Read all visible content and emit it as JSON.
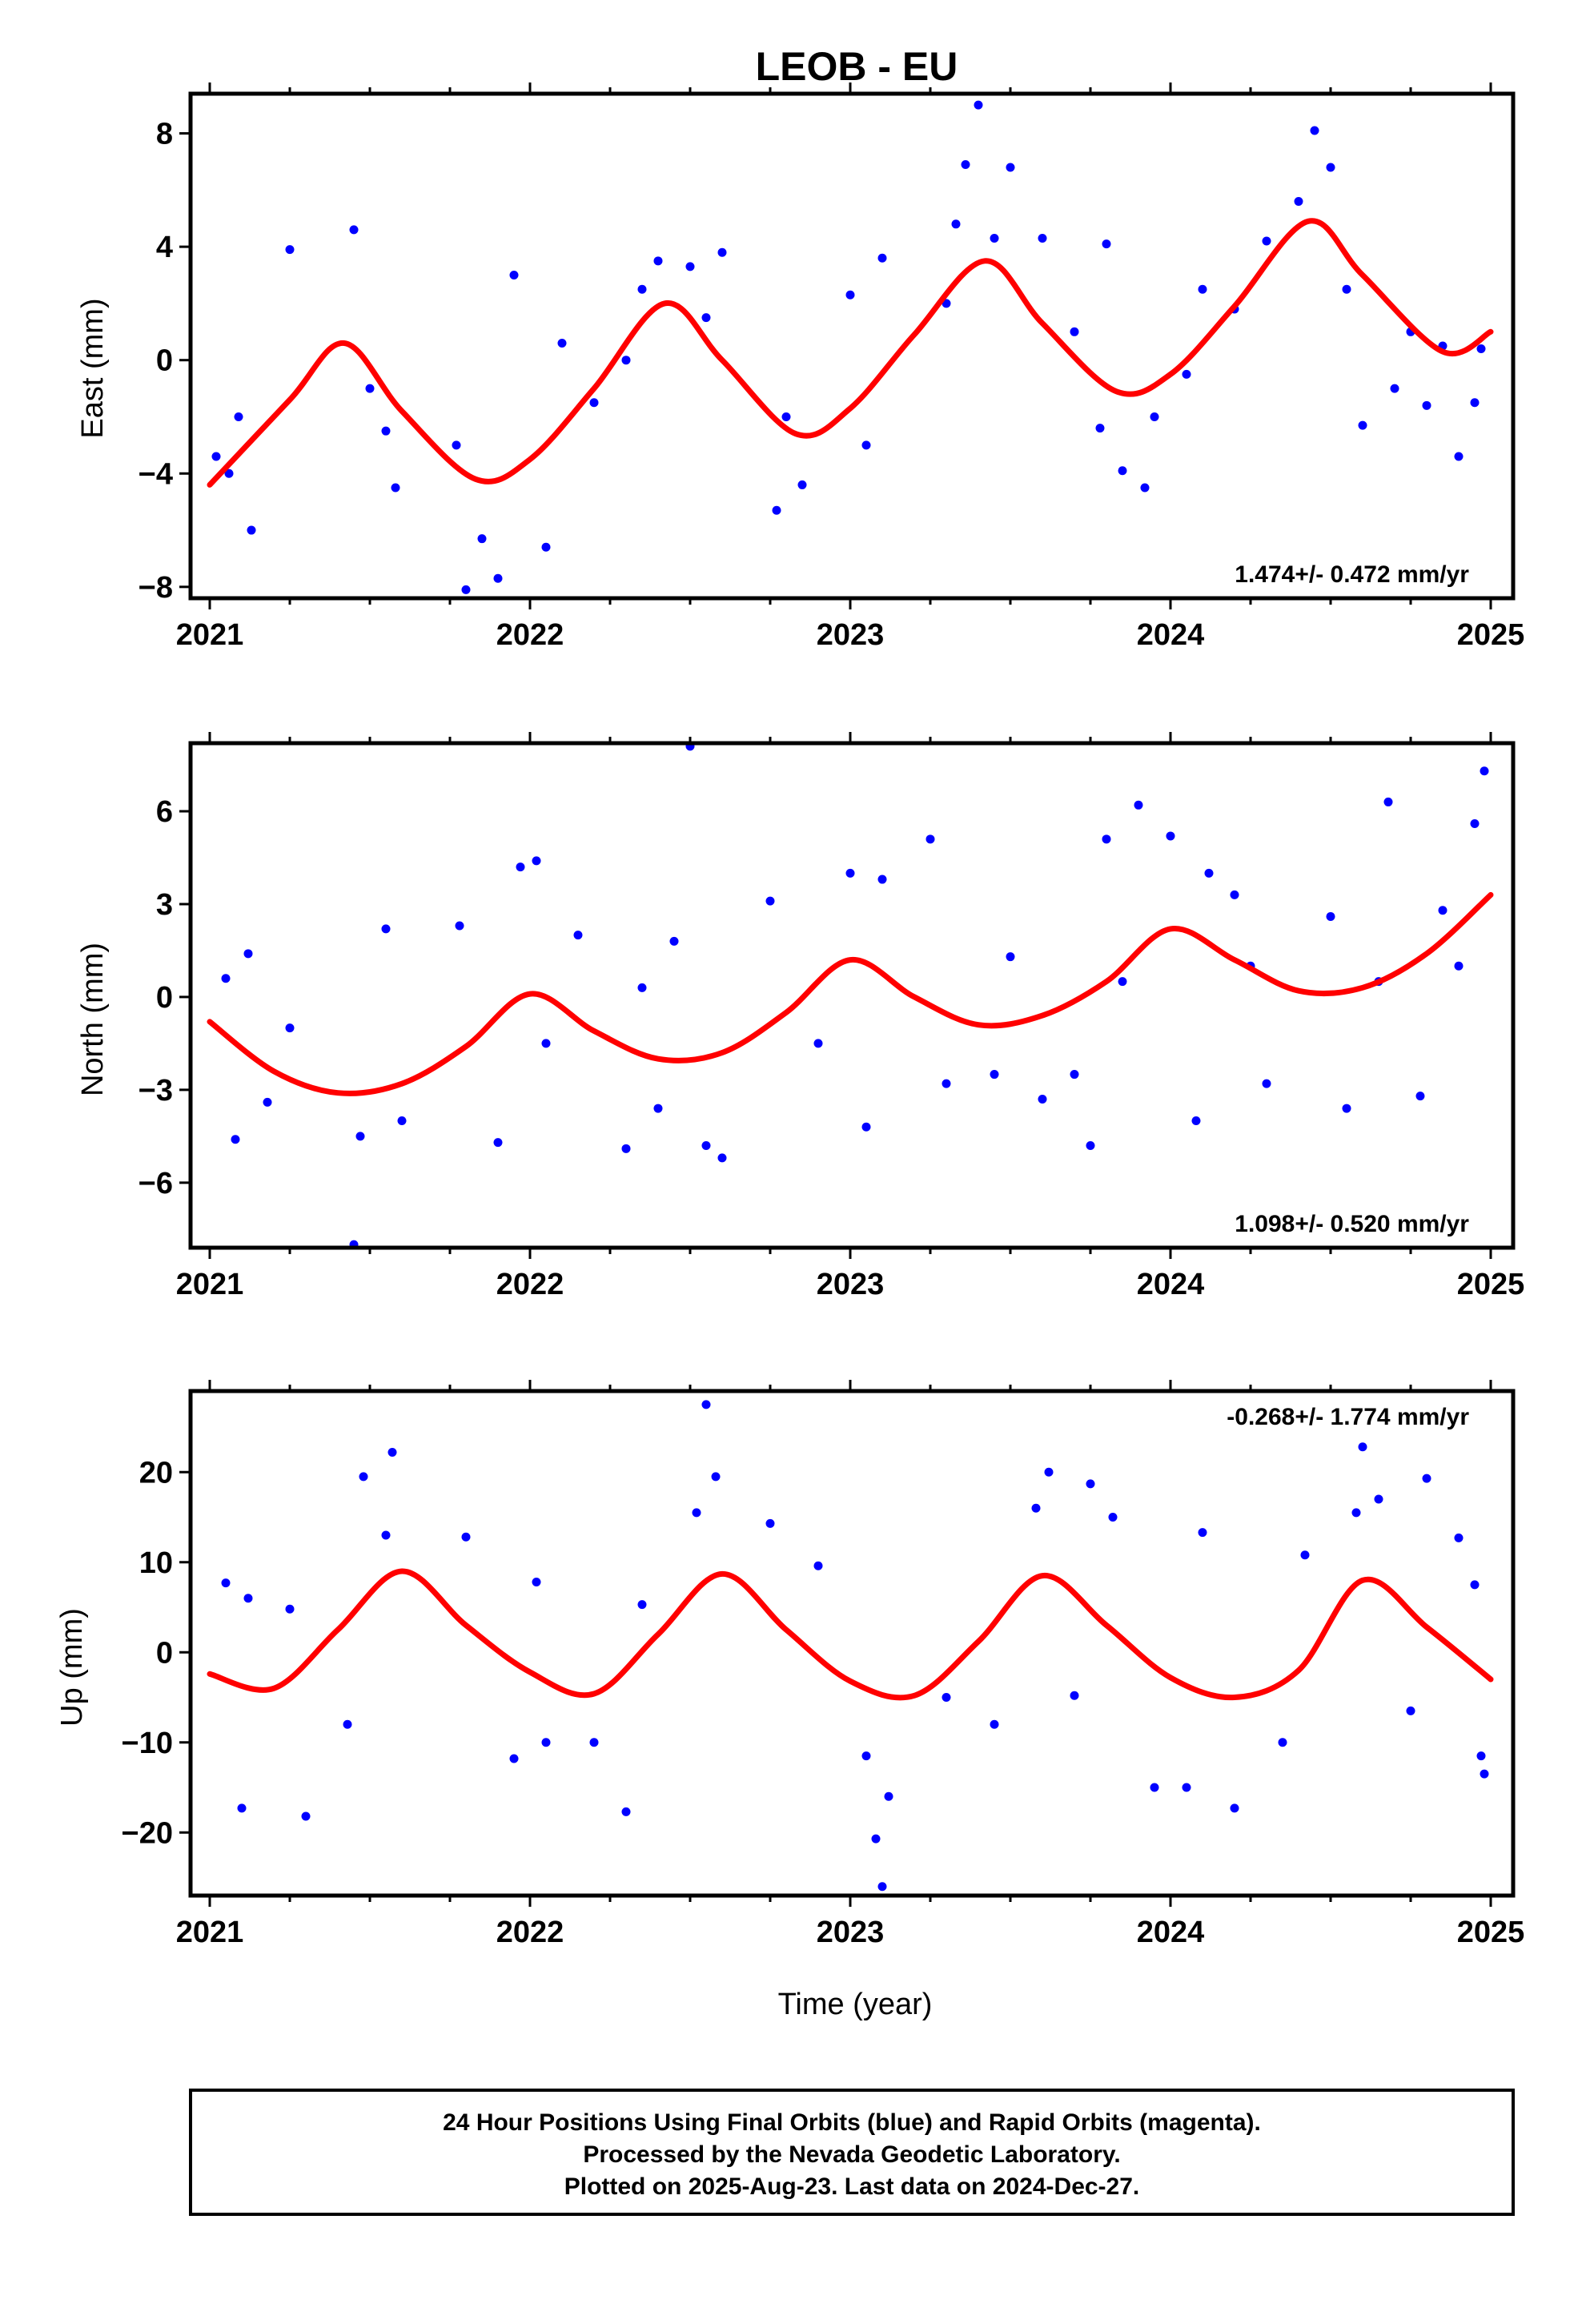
{
  "title": "LEOB - EU",
  "xlabel": "Time (year)",
  "x_tick_labels": [
    "2021",
    "2022",
    "2023",
    "2024",
    "2025"
  ],
  "colors": {
    "final_orbits": "#0000ff",
    "model": "#ff0000",
    "frame": "#000000"
  },
  "footer": {
    "line1": "24 Hour Positions Using Final Orbits (blue) and Rapid Orbits (magenta).",
    "line2": "Processed by the Nevada Geodetic Laboratory.",
    "line3": "Plotted on 2025-Aug-23. Last data on 2024-Dec-27."
  },
  "chart_data": [
    {
      "type": "scatter",
      "component": "east",
      "ylabel": "East (mm)",
      "xlim": [
        2020.94,
        2025.07
      ],
      "ylim": [
        -8.4,
        9.4
      ],
      "yticks": [
        -8,
        -4,
        0,
        4,
        8
      ],
      "ytick_labels": [
        "−8",
        "−4",
        "0",
        "4",
        "8"
      ],
      "rate_text": "1.474+/- 0.472 mm/yr",
      "rate_position": "bottom-right",
      "model": {
        "x": [
          2021.0,
          2021.25,
          2021.42,
          2021.6,
          2021.83,
          2022.0,
          2022.2,
          2022.42,
          2022.6,
          2022.83,
          2023.0,
          2023.2,
          2023.42,
          2023.6,
          2023.83,
          2024.0,
          2024.2,
          2024.43,
          2024.6,
          2024.85,
          2025.0
        ],
        "y": [
          -4.4,
          -1.4,
          0.6,
          -1.8,
          -4.2,
          -3.5,
          -1.0,
          2.0,
          0.0,
          -2.6,
          -1.7,
          0.9,
          3.5,
          1.3,
          -1.1,
          -0.5,
          1.9,
          4.9,
          3.0,
          0.3,
          1.0
        ]
      },
      "points": {
        "x": [
          2021.02,
          2021.06,
          2021.09,
          2021.13,
          2021.25,
          2021.45,
          2021.5,
          2021.55,
          2021.58,
          2021.77,
          2021.8,
          2021.85,
          2021.9,
          2021.95,
          2022.05,
          2022.1,
          2022.2,
          2022.3,
          2022.35,
          2022.4,
          2022.5,
          2022.55,
          2022.6,
          2022.77,
          2022.8,
          2022.85,
          2023.0,
          2023.05,
          2023.1,
          2023.3,
          2023.33,
          2023.36,
          2023.4,
          2023.45,
          2023.5,
          2023.6,
          2023.7,
          2023.78,
          2023.8,
          2023.85,
          2023.92,
          2023.95,
          2024.05,
          2024.1,
          2024.2,
          2024.3,
          2024.4,
          2024.45,
          2024.5,
          2024.55,
          2024.6,
          2024.7,
          2024.75,
          2024.8,
          2024.85,
          2024.9,
          2024.95,
          2024.97
        ],
        "y": [
          -3.4,
          -4.0,
          -2.0,
          -6.0,
          3.9,
          4.6,
          -1.0,
          -2.5,
          -4.5,
          -3.0,
          -8.1,
          -6.3,
          -7.7,
          3.0,
          -6.6,
          0.6,
          -1.5,
          0.0,
          2.5,
          3.5,
          3.3,
          1.5,
          3.8,
          -5.3,
          -2.0,
          -4.4,
          2.3,
          -3.0,
          3.6,
          2.0,
          4.8,
          6.9,
          9.0,
          4.3,
          6.8,
          4.3,
          1.0,
          -2.4,
          4.1,
          -3.9,
          -4.5,
          -2.0,
          -0.5,
          2.5,
          1.8,
          4.2,
          5.6,
          8.1,
          6.8,
          2.5,
          -2.3,
          -1.0,
          1.0,
          -1.6,
          0.5,
          -3.4,
          -1.5,
          0.4
        ]
      }
    },
    {
      "type": "scatter",
      "component": "north",
      "ylabel": "North (mm)",
      "xlim": [
        2020.94,
        2025.07
      ],
      "ylim": [
        -8.1,
        8.2
      ],
      "yticks": [
        -6,
        -3,
        0,
        3,
        6
      ],
      "ytick_labels": [
        "−6",
        "−3",
        "0",
        "3",
        "6"
      ],
      "rate_text": "1.098+/- 0.520 mm/yr",
      "rate_position": "bottom-right",
      "model": {
        "x": [
          2021.0,
          2021.2,
          2021.4,
          2021.6,
          2021.8,
          2022.0,
          2022.2,
          2022.4,
          2022.6,
          2022.8,
          2023.0,
          2023.2,
          2023.4,
          2023.6,
          2023.8,
          2024.0,
          2024.2,
          2024.4,
          2024.6,
          2024.8,
          2025.0
        ],
        "y": [
          -0.8,
          -2.4,
          -3.1,
          -2.8,
          -1.6,
          0.1,
          -1.1,
          -2.0,
          -1.8,
          -0.5,
          1.2,
          0.0,
          -0.9,
          -0.6,
          0.5,
          2.2,
          1.2,
          0.2,
          0.3,
          1.4,
          3.3
        ]
      },
      "points": {
        "x": [
          2021.05,
          2021.08,
          2021.12,
          2021.18,
          2021.25,
          2021.45,
          2021.47,
          2021.55,
          2021.6,
          2021.78,
          2021.9,
          2021.97,
          2022.02,
          2022.05,
          2022.15,
          2022.3,
          2022.35,
          2022.4,
          2022.45,
          2022.5,
          2022.55,
          2022.6,
          2022.75,
          2022.9,
          2023.0,
          2023.05,
          2023.1,
          2023.25,
          2023.3,
          2023.45,
          2023.5,
          2023.6,
          2023.7,
          2023.75,
          2023.8,
          2023.85,
          2023.9,
          2024.0,
          2024.08,
          2024.12,
          2024.2,
          2024.25,
          2024.3,
          2024.5,
          2024.55,
          2024.65,
          2024.68,
          2024.78,
          2024.85,
          2024.9,
          2024.95,
          2024.98
        ],
        "y": [
          0.6,
          -4.6,
          1.4,
          -3.4,
          -1.0,
          -8.0,
          -4.5,
          2.2,
          -4.0,
          2.3,
          -4.7,
          4.2,
          4.4,
          -1.5,
          2.0,
          -4.9,
          0.3,
          -3.6,
          1.8,
          8.1,
          -4.8,
          -5.2,
          3.1,
          -1.5,
          4.0,
          -4.2,
          3.8,
          5.1,
          -2.8,
          -2.5,
          1.3,
          -3.3,
          -2.5,
          -4.8,
          5.1,
          0.5,
          6.2,
          5.2,
          -4.0,
          4.0,
          3.3,
          1.0,
          -2.8,
          2.6,
          -3.6,
          0.5,
          6.3,
          -3.2,
          2.8,
          1.0,
          5.6,
          7.3
        ]
      }
    },
    {
      "type": "scatter",
      "component": "up",
      "ylabel": "Up (mm)",
      "xlim": [
        2020.94,
        2025.07
      ],
      "ylim": [
        -27.0,
        29.0
      ],
      "yticks": [
        -20,
        -10,
        0,
        10,
        20
      ],
      "ytick_labels": [
        "−20",
        "−10",
        "0",
        "10",
        "20"
      ],
      "rate_text": "-0.268+/- 1.774 mm/yr",
      "rate_position": "top-right",
      "model": {
        "x": [
          2021.0,
          2021.2,
          2021.4,
          2021.6,
          2021.8,
          2022.0,
          2022.2,
          2022.4,
          2022.6,
          2022.8,
          2023.0,
          2023.2,
          2023.4,
          2023.6,
          2023.8,
          2024.0,
          2024.2,
          2024.4,
          2024.6,
          2024.8,
          2025.0
        ],
        "y": [
          -2.4,
          -4.0,
          2.5,
          9.0,
          3.0,
          -2.2,
          -4.6,
          2.0,
          8.7,
          2.5,
          -3.2,
          -4.8,
          1.2,
          8.5,
          3.0,
          -2.8,
          -5.0,
          -2.0,
          8.0,
          2.8,
          -3.0
        ]
      },
      "points": {
        "x": [
          2021.05,
          2021.1,
          2021.12,
          2021.25,
          2021.3,
          2021.43,
          2021.48,
          2021.55,
          2021.57,
          2021.8,
          2021.95,
          2022.02,
          2022.05,
          2022.2,
          2022.3,
          2022.35,
          2022.52,
          2022.55,
          2022.58,
          2022.75,
          2022.9,
          2023.05,
          2023.08,
          2023.1,
          2023.12,
          2023.3,
          2023.45,
          2023.58,
          2023.62,
          2023.7,
          2023.75,
          2023.82,
          2023.95,
          2024.05,
          2024.1,
          2024.2,
          2024.35,
          2024.42,
          2024.58,
          2024.6,
          2024.65,
          2024.75,
          2024.8,
          2024.9,
          2024.95,
          2024.97,
          2024.98
        ],
        "y": [
          7.7,
          -17.3,
          6.0,
          4.8,
          -18.2,
          -8.0,
          19.5,
          13.0,
          22.2,
          12.8,
          -11.8,
          7.8,
          -10.0,
          -10.0,
          -17.7,
          5.3,
          15.5,
          27.5,
          19.5,
          14.3,
          9.6,
          -11.5,
          -20.7,
          -26.0,
          -16.0,
          -5.0,
          -8.0,
          16.0,
          20.0,
          -4.8,
          18.7,
          15.0,
          -15.0,
          -15.0,
          13.3,
          -17.3,
          -10.0,
          10.8,
          15.5,
          22.8,
          17.0,
          -6.5,
          19.3,
          12.7,
          7.5,
          -11.5,
          -13.5
        ]
      }
    }
  ]
}
